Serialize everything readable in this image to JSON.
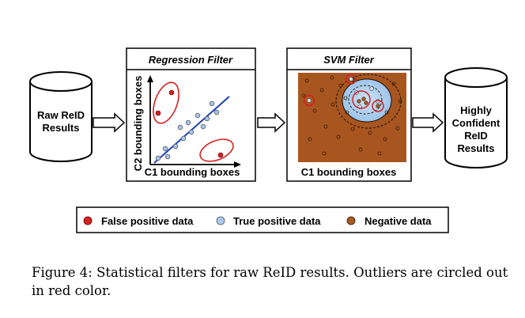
{
  "nodes": {
    "input_db": {
      "lines": [
        "Raw ReID",
        "Results"
      ]
    },
    "output_db": {
      "lines": [
        "Highly",
        "Confident",
        "ReID",
        "Results"
      ]
    }
  },
  "panels": {
    "regression": {
      "title": "Regression Filter",
      "xlabel": "C1 bounding boxes",
      "ylabel": "C2 bounding boxes"
    },
    "svm": {
      "title": "SVM Filter",
      "xlabel": "C1 bounding boxes"
    }
  },
  "legend": [
    {
      "label": "False positive data",
      "color": "#d42020",
      "icon": "red-dot-icon"
    },
    {
      "label": "True positive data",
      "color": "#a9c8ee",
      "icon": "light-blue-dot-icon"
    },
    {
      "label": "Negative data",
      "color": "#a55b1f",
      "icon": "brown-dot-icon"
    }
  ],
  "colors": {
    "false_positive": "#d42020",
    "true_positive": "#a9c8ee",
    "negative": "#a55b1f",
    "svm_background": "#a8561f",
    "regression_line": "#1f3fb0"
  },
  "caption": "Figure 4: Statistical filters for raw ReID results. Outliers are circled out in red color."
}
